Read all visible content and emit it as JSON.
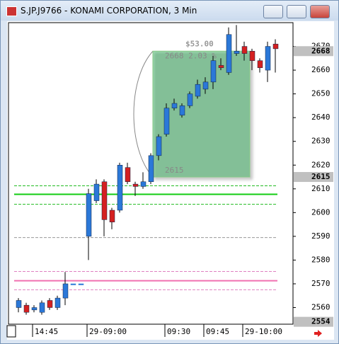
{
  "window": {
    "title": "S.JP.J9766 - KONAMI CORPORATION, 3 Min"
  },
  "chart_data": {
    "type": "candlestick",
    "categories": [
      null,
      null,
      "14:45",
      null,
      null,
      null,
      null,
      null,
      null,
      "29-09:00",
      null,
      null,
      null,
      null,
      null,
      null,
      null,
      null,
      null,
      "09:30",
      null,
      null,
      null,
      null,
      "09:45",
      null,
      null,
      null,
      null,
      "29-10:00",
      null,
      null,
      null,
      null
    ],
    "open": [
      2560,
      2561,
      2559,
      2558,
      2563,
      2560,
      2564,
      2570,
      2570,
      2590,
      2605,
      2613,
      2601,
      2601,
      2619,
      2612,
      2611,
      2613,
      2624,
      2633,
      2644,
      2641,
      2645,
      2649,
      2652,
      2655,
      2662,
      2659,
      2667,
      2670,
      2668,
      2664,
      2660,
      2671
    ],
    "high": [
      2564,
      2562,
      2561,
      2563,
      2564,
      2565,
      2575,
      2570,
      2570,
      2610,
      2614,
      2614,
      2602,
      2621,
      2621,
      2613,
      2617,
      2625,
      2633,
      2646,
      2648,
      2646,
      2651,
      2656,
      2657,
      2666,
      2665,
      2678,
      2679,
      2672,
      2669,
      2665,
      2672,
      2673
    ],
    "low": [
      2558,
      2557,
      2558,
      2557,
      2559,
      2559,
      2561,
      2570,
      2570,
      2580,
      2604,
      2590,
      2593,
      2600,
      2612,
      2607,
      2610,
      2612,
      2622,
      2632,
      2643,
      2640,
      2644,
      2648,
      2650,
      2652,
      2660,
      2658,
      2666,
      2664,
      2660,
      2659,
      2655,
      2659
    ],
    "close": [
      2563,
      2558,
      2560,
      2562,
      2560,
      2564,
      2570,
      2570,
      2570,
      2608,
      2612,
      2597,
      2596,
      2620,
      2613,
      2611,
      2613,
      2624,
      2632,
      2644,
      2646,
      2645,
      2650,
      2654,
      2655,
      2664,
      2661,
      2675,
      2668,
      2667,
      2664,
      2661,
      2670,
      2669
    ],
    "up_color": "#2b78d8",
    "down_color": "#d42020",
    "ylim": [
      2553,
      2680
    ],
    "yticks": [
      2560,
      2570,
      2580,
      2590,
      2600,
      2610,
      2620,
      2630,
      2640,
      2650,
      2660,
      2670
    ],
    "price_labels": [
      2668,
      2615,
      2554
    ],
    "levels": [
      {
        "value": 2611.3,
        "color": "#22bb22",
        "style": "dashed"
      },
      {
        "value": 2607.7,
        "color": "#11cc11",
        "style": "solid"
      },
      {
        "value": 2603.5,
        "color": "#22bb22",
        "style": "dashed"
      },
      {
        "value": 2589.5,
        "color": "#999999",
        "style": "dashed"
      },
      {
        "value": 2575.2,
        "color": "#e080c0",
        "style": "dashed"
      },
      {
        "value": 2571.3,
        "color": "#f070b0",
        "style": "solid"
      },
      {
        "value": 2567.5,
        "color": "#e080c0",
        "style": "dashed"
      }
    ],
    "measure": {
      "top": 2668,
      "bottom": 2615,
      "change_label": "$53.00",
      "top_label": "2668 2.03 %",
      "bottom_label": "2615"
    }
  }
}
